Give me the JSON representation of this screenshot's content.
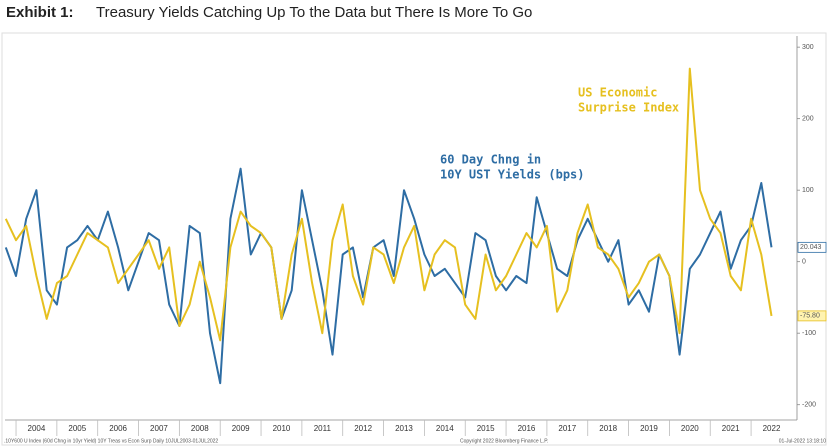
{
  "chart_data": {
    "type": "line",
    "title_prefix": "Exhibit 1:",
    "title": "Treasury Yields Catching Up To the Data but There Is More To Go",
    "footer": [
      ".10Y600 U Index (60d Chng in 10yr Yield) 10Y Treas vs Econ Surp Daily 10JUL2003-01JUL2022",
      "Copyright 2022 Bloomberg Finance L.P.",
      "01-Jul-2022 13:18:10"
    ],
    "annotations": [
      {
        "lines": [
          "60 Day Chng in",
          "10Y UST Yields (bps)"
        ],
        "color": "#2e6da4"
      },
      {
        "lines": [
          "US Economic",
          "Surprise Index"
        ],
        "color": "#e6c020"
      }
    ],
    "x": [
      2003.75,
      2004,
      2004.25,
      2004.5,
      2004.75,
      2005,
      2005.25,
      2005.5,
      2005.75,
      2006,
      2006.25,
      2006.5,
      2006.75,
      2007,
      2007.25,
      2007.5,
      2007.75,
      2008,
      2008.25,
      2008.5,
      2008.75,
      2009,
      2009.25,
      2009.5,
      2009.75,
      2010,
      2010.25,
      2010.5,
      2010.75,
      2011,
      2011.25,
      2011.5,
      2011.75,
      2012,
      2012.25,
      2012.5,
      2012.75,
      2013,
      2013.25,
      2013.5,
      2013.75,
      2014,
      2014.25,
      2014.5,
      2014.75,
      2015,
      2015.25,
      2015.5,
      2015.75,
      2016,
      2016.25,
      2016.5,
      2016.75,
      2017,
      2017.25,
      2017.5,
      2017.75,
      2018,
      2018.25,
      2018.5,
      2018.75,
      2019,
      2019.25,
      2019.5,
      2019.75,
      2020,
      2020.25,
      2020.5,
      2020.75,
      2021,
      2021.25,
      2021.5,
      2021.75,
      2022,
      2022.25,
      2022.5
    ],
    "series": [
      {
        "name": "60 Day Chng in 10Y UST Yields (bps)",
        "color": "#2e6da4",
        "values": [
          20,
          -20,
          60,
          100,
          -40,
          -60,
          20,
          30,
          50,
          30,
          70,
          20,
          -40,
          0,
          40,
          30,
          -60,
          -90,
          50,
          40,
          -100,
          -170,
          60,
          130,
          10,
          40,
          20,
          -80,
          -40,
          100,
          30,
          -40,
          -130,
          10,
          20,
          -50,
          20,
          30,
          -20,
          100,
          60,
          10,
          -20,
          -10,
          -30,
          -50,
          40,
          30,
          -20,
          -40,
          -20,
          -30,
          90,
          40,
          -10,
          -20,
          30,
          60,
          30,
          0,
          30,
          -60,
          -40,
          -70,
          10,
          -20,
          -130,
          -10,
          10,
          40,
          70,
          -10,
          30,
          50,
          110,
          20.043
        ]
      },
      {
        "name": "US Economic Surprise Index",
        "color": "#e6c020",
        "values": [
          60,
          30,
          50,
          -20,
          -80,
          -30,
          -20,
          10,
          40,
          30,
          20,
          -30,
          -10,
          10,
          30,
          -10,
          20,
          -90,
          -60,
          0,
          -50,
          -110,
          20,
          70,
          50,
          40,
          20,
          -80,
          10,
          60,
          -30,
          -100,
          30,
          80,
          -20,
          -60,
          20,
          10,
          -30,
          20,
          50,
          -40,
          10,
          30,
          20,
          -60,
          -80,
          10,
          -40,
          -20,
          10,
          40,
          20,
          50,
          -70,
          -40,
          40,
          80,
          20,
          10,
          -10,
          -50,
          -30,
          0,
          10,
          -20,
          -100,
          270,
          100,
          60,
          40,
          -20,
          -40,
          60,
          10,
          -75.8
        ],
        "value_labels": [
          null,
          null,
          null,
          null,
          null,
          null,
          null,
          null,
          null,
          null,
          null,
          null,
          null,
          null,
          null,
          null,
          null,
          null,
          null,
          null,
          null,
          null,
          null,
          null,
          null,
          null,
          null,
          null,
          null,
          null,
          null,
          null,
          null,
          null,
          null,
          null,
          null,
          null,
          null,
          null,
          null,
          null,
          null,
          null,
          null,
          null,
          null,
          null,
          null,
          null,
          null,
          null,
          null,
          null,
          null,
          null,
          null,
          null,
          null,
          null,
          null,
          null,
          null,
          null,
          null,
          null,
          null,
          null,
          null,
          null,
          null,
          null,
          null,
          null,
          null,
          "-75.80"
        ]
      }
    ],
    "xlim": [
      2003.73,
      2023.1
    ],
    "xticks": [
      2004,
      2005,
      2006,
      2007,
      2008,
      2009,
      2010,
      2011,
      2012,
      2013,
      2014,
      2015,
      2016,
      2017,
      2018,
      2019,
      2020,
      2021,
      2022
    ],
    "ylim": [
      -220,
      310
    ],
    "yticks": [
      -200,
      -100,
      0,
      100,
      200,
      300
    ]
  }
}
